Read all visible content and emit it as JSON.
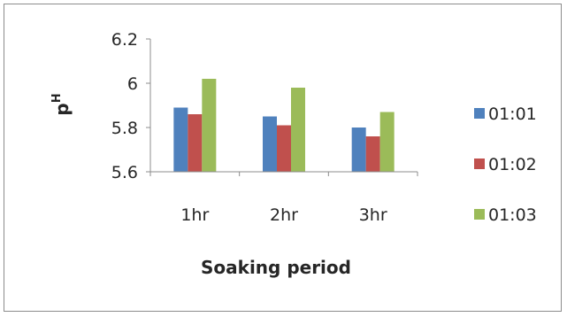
{
  "chart_data": {
    "type": "bar",
    "title": "",
    "xlabel": "Soaking period",
    "ylabel_main": "p",
    "ylabel_sup": "H",
    "categories": [
      "1hr",
      "2hr",
      "3hr"
    ],
    "ylim": [
      5.6,
      6.2
    ],
    "yticks": [
      5.6,
      5.8,
      6,
      6.2
    ],
    "ytick_labels": [
      "5.6",
      "5.8",
      "6",
      "6.2"
    ],
    "grid": false,
    "legend_position": "right",
    "series": [
      {
        "name": "01:01",
        "color": "#4f81bd",
        "values": [
          5.89,
          5.85,
          5.8
        ]
      },
      {
        "name": "01:02",
        "color": "#c0504d",
        "values": [
          5.86,
          5.81,
          5.76
        ]
      },
      {
        "name": "01:03",
        "color": "#9bbb59",
        "values": [
          6.02,
          5.98,
          5.87
        ]
      }
    ]
  }
}
